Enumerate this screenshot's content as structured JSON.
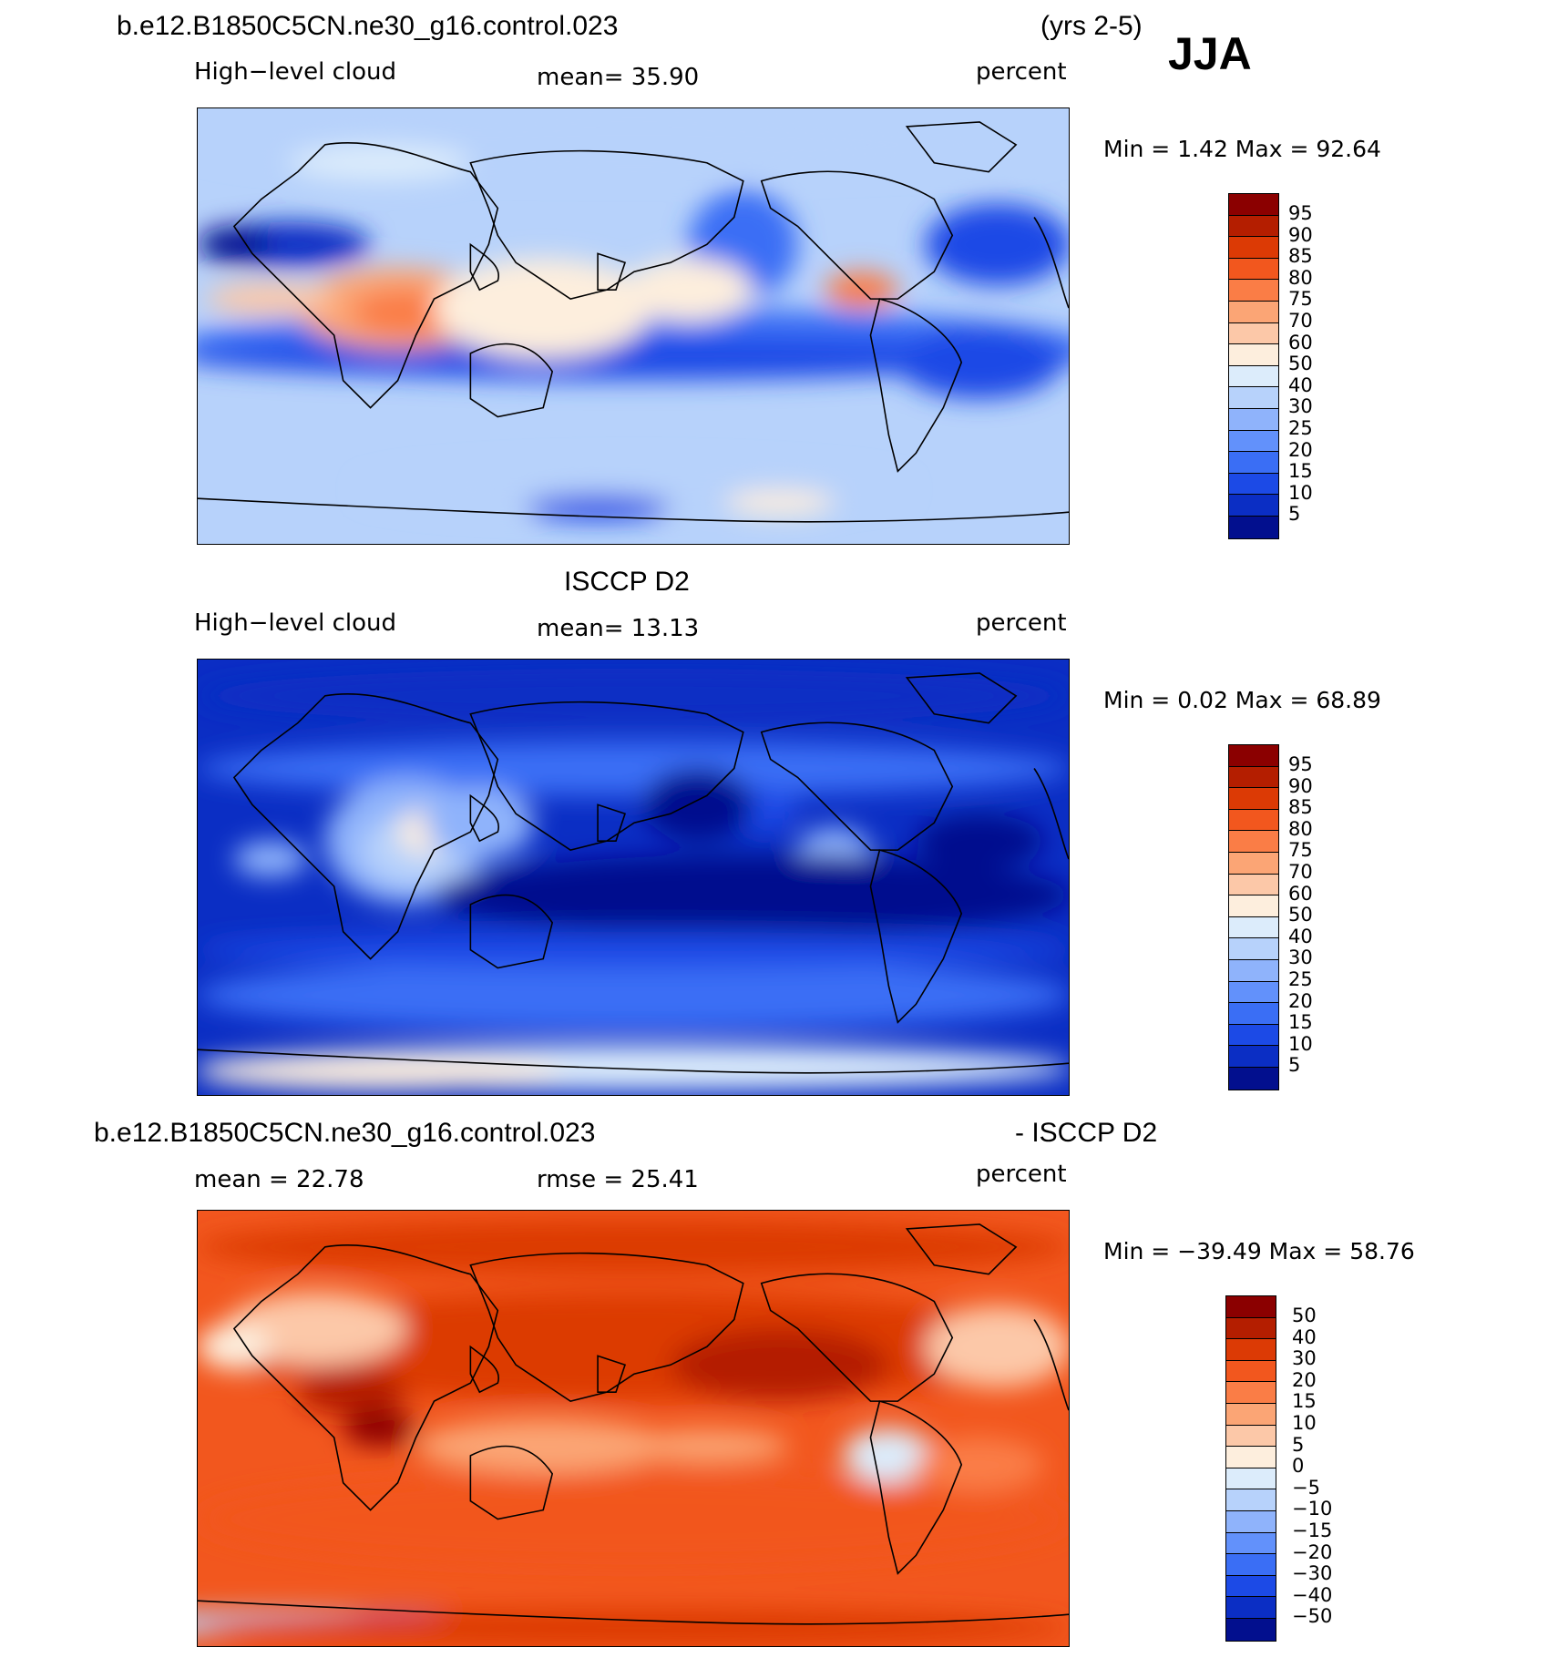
{
  "header": {
    "case_name": "b.e12.B1850C5CN.ne30_g16.control.023",
    "years": "(yrs 2-5)",
    "season": "JJA"
  },
  "panels": [
    {
      "variable": "High−level cloud",
      "mean_text": "mean=   35.90",
      "units": "percent",
      "minmax": "Min =     1.42 Max =    92.64",
      "colorbar_labels": [
        "95",
        "90",
        "85",
        "80",
        "75",
        "70",
        "60",
        "50",
        "40",
        "30",
        "25",
        "20",
        "15",
        "10",
        "5"
      ]
    },
    {
      "title": "ISCCP D2",
      "variable": "High−level cloud",
      "mean_text": "mean=   13.13",
      "units": "percent",
      "minmax": "Min =     0.02 Max =    68.89",
      "colorbar_labels": [
        "95",
        "90",
        "85",
        "80",
        "75",
        "70",
        "60",
        "50",
        "40",
        "30",
        "25",
        "20",
        "15",
        "10",
        "5"
      ]
    },
    {
      "title_left": "b.e12.B1850C5CN.ne30_g16.control.023",
      "title_right": "- ISCCP D2",
      "mean_text": "mean =    22.78",
      "rmse_text": "rmse =    25.41",
      "units": "percent",
      "minmax": "Min = −39.49  Max =    58.76",
      "colorbar_labels": [
        "50",
        "40",
        "30",
        "20",
        "15",
        "10",
        "5",
        "0",
        "−5",
        "−10",
        "−15",
        "−20",
        "−30",
        "−40",
        "−50"
      ]
    }
  ],
  "colors": {
    "scale": [
      "#8b0000",
      "#b41e00",
      "#dc3a05",
      "#f2571e",
      "#fa7d46",
      "#fba575",
      "#fcc8a8",
      "#fdeedd",
      "#dcecfb",
      "#b7d2fb",
      "#8fb3fb",
      "#6291fb",
      "#3a6ef5",
      "#1c4ae6",
      "#0b2ec4",
      "#020f8e"
    ]
  }
}
